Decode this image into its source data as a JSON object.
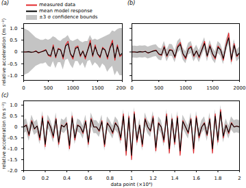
{
  "chart_data": [
    {
      "type": "line",
      "title": "(a)",
      "ylabel": "relative acceleration (m s⁻²)",
      "legend": "top-left",
      "xlim": [
        0,
        2000
      ],
      "xticks": [
        0,
        500,
        1000,
        1500,
        2000
      ],
      "ylim": [
        -1.2,
        1.2
      ],
      "yticks": [
        {
          "value": -1,
          "label": "–1.0"
        },
        {
          "value": -0.5,
          "label": "–0.5"
        },
        0,
        0.5,
        {
          "value": 1,
          "label": "1.0"
        }
      ],
      "x": [
        0,
        50,
        100,
        150,
        200,
        250,
        300,
        350,
        400,
        450,
        500,
        550,
        600,
        650,
        700,
        750,
        800,
        850,
        900,
        950,
        1000,
        1050,
        1100,
        1150,
        1200,
        1250,
        1300,
        1350,
        1400,
        1450,
        1500,
        1550,
        1600,
        1650,
        1700,
        1750,
        1800,
        1850,
        1900,
        1950,
        2000
      ],
      "series": [
        {
          "name": "±3 σ confidence bounds",
          "type": "area",
          "color": "#c4c4c4",
          "upper": [
            1.0,
            0.95,
            0.9,
            0.8,
            0.7,
            0.6,
            0.55,
            0.5,
            0.5,
            0.55,
            0.5,
            0.55,
            0.65,
            0.6,
            0.5,
            0.45,
            0.55,
            0.6,
            0.7,
            0.5,
            0.45,
            0.5,
            0.55,
            0.45,
            0.4,
            0.45,
            0.45,
            0.7,
            0.5,
            0.55,
            0.5,
            0.55,
            0.6,
            0.65,
            0.7,
            0.75,
            0.9,
            0.85,
            0.95,
            1.0,
            1.0
          ],
          "lower": [
            -1.0,
            -0.95,
            -0.9,
            -0.8,
            -0.7,
            -0.6,
            -0.55,
            -0.5,
            -0.5,
            -0.45,
            -0.6,
            -0.65,
            -0.4,
            -0.7,
            -0.45,
            -0.45,
            -0.75,
            -0.35,
            -0.3,
            -0.55,
            -0.7,
            -0.4,
            -0.4,
            -0.6,
            -0.45,
            -0.7,
            -0.4,
            -0.35,
            -0.6,
            -0.45,
            -0.55,
            -0.7,
            -0.5,
            -0.6,
            -0.85,
            -0.7,
            -0.6,
            -1.0,
            -0.8,
            -1.0,
            -1.0
          ]
        },
        {
          "name": "measured data",
          "color": "#e3262b",
          "values": [
            0,
            0,
            0.02,
            -0.02,
            0,
            0.05,
            -0.05,
            0,
            0.05,
            0.1,
            -0.15,
            -0.2,
            0.3,
            -0.25,
            0.15,
            0.1,
            -0.3,
            0.3,
            0.45,
            -0.1,
            -0.3,
            0.2,
            0.25,
            -0.2,
            0.05,
            -0.3,
            0.1,
            0.5,
            -0.2,
            0.3,
            -0.1,
            -0.25,
            0.2,
            0.1,
            -0.3,
            0.2,
            0.5,
            -0.35,
            0.3,
            -0.2,
            -0.1
          ]
        },
        {
          "name": "mean model response",
          "color": "#000000",
          "values": [
            0,
            0,
            0.01,
            -0.01,
            0,
            0.03,
            -0.03,
            0,
            0.03,
            0.08,
            -0.12,
            -0.15,
            0.22,
            -0.2,
            0.12,
            0.08,
            -0.22,
            0.25,
            0.35,
            -0.08,
            -0.22,
            0.15,
            0.2,
            -0.15,
            0.03,
            -0.22,
            0.08,
            0.38,
            -0.15,
            0.22,
            -0.08,
            -0.2,
            0.15,
            0.08,
            -0.22,
            0.15,
            0.38,
            -0.25,
            0.22,
            -0.15,
            -0.05
          ]
        }
      ]
    },
    {
      "type": "line",
      "title": "(b)",
      "tick_labels": "x",
      "xlim": [
        0,
        2000
      ],
      "xticks": [
        0,
        500,
        1000,
        1500,
        2000
      ],
      "ylim": [
        -1.2,
        1.2
      ],
      "yticks": [
        {
          "value": -1,
          "label": "–1.0"
        },
        {
          "value": -0.5,
          "label": "–0.5"
        },
        0,
        0.5,
        {
          "value": 1,
          "label": "1.0"
        }
      ],
      "x": [
        0,
        50,
        100,
        150,
        200,
        250,
        300,
        350,
        400,
        450,
        500,
        550,
        600,
        650,
        700,
        750,
        800,
        850,
        900,
        950,
        1000,
        1050,
        1100,
        1150,
        1200,
        1250,
        1300,
        1350,
        1400,
        1450,
        1500,
        1550,
        1600,
        1650,
        1700,
        1750,
        1800,
        1850,
        1900,
        1950,
        2000
      ],
      "series": [
        {
          "name": "±3 σ confidence bounds",
          "type": "area",
          "color": "#c4c4c4",
          "upper": [
            0.25,
            0.25,
            0.24,
            0.26,
            0.25,
            0.27,
            0.21,
            0.25,
            0.29,
            0.31,
            0.17,
            0.13,
            0.45,
            0.09,
            0.33,
            0.31,
            0.05,
            0.45,
            0.57,
            0.17,
            0.01,
            0.37,
            0.45,
            0.09,
            0.29,
            0.05,
            0.33,
            0.61,
            0.09,
            0.49,
            0.17,
            0.01,
            0.45,
            0.33,
            -0.03,
            0.49,
            0.85,
            -0.07,
            0.53,
            0.09,
            0.21
          ],
          "lower": [
            -0.25,
            -0.25,
            -0.26,
            -0.24,
            -0.25,
            -0.23,
            -0.29,
            -0.25,
            -0.21,
            -0.19,
            -0.33,
            -0.37,
            -0.05,
            -0.41,
            -0.17,
            -0.19,
            -0.45,
            -0.05,
            0.07,
            -0.33,
            -0.49,
            -0.13,
            -0.05,
            -0.41,
            -0.21,
            -0.45,
            -0.17,
            0.11,
            -0.41,
            -0.01,
            -0.33,
            -0.49,
            -0.05,
            -0.17,
            -0.53,
            -0.01,
            0.35,
            -0.57,
            0.03,
            -0.41,
            -0.29
          ]
        },
        {
          "name": "measured data",
          "color": "#e3262b",
          "values": [
            0,
            0,
            -0.02,
            0.02,
            0,
            0.03,
            -0.05,
            0,
            0.05,
            0.08,
            -0.1,
            -0.15,
            0.25,
            -0.2,
            0.1,
            0.08,
            -0.25,
            0.25,
            0.4,
            -0.1,
            -0.3,
            0.15,
            0.25,
            -0.2,
            0.05,
            -0.25,
            0.1,
            0.45,
            -0.2,
            0.3,
            -0.1,
            -0.3,
            0.25,
            0.1,
            -0.35,
            0.3,
            0.8,
            -0.4,
            0.35,
            -0.2,
            -0.05
          ]
        },
        {
          "name": "mean model response",
          "color": "#000000",
          "values": [
            0,
            0,
            -0.01,
            0.01,
            0,
            0.02,
            -0.04,
            0,
            0.04,
            0.06,
            -0.08,
            -0.12,
            0.2,
            -0.16,
            0.08,
            0.06,
            -0.2,
            0.2,
            0.32,
            -0.08,
            -0.24,
            0.12,
            0.2,
            -0.16,
            0.04,
            -0.2,
            0.08,
            0.36,
            -0.16,
            0.24,
            -0.08,
            -0.24,
            0.2,
            0.08,
            -0.28,
            0.24,
            0.6,
            -0.32,
            0.28,
            -0.16,
            -0.04
          ]
        }
      ]
    },
    {
      "type": "line",
      "title": "(c)",
      "ylabel": "relative acceleration (m s⁻²)",
      "xlabel": "data point (×10⁴)",
      "xlim": [
        0,
        2
      ],
      "xticks": [
        0,
        0.2,
        0.4,
        0.6,
        0.8,
        1,
        1.2,
        1.4,
        1.6,
        1.8,
        2
      ],
      "ylim": [
        -2,
        1.2
      ],
      "yticks": [
        {
          "value": -2,
          "label": "–2.0"
        },
        {
          "value": -1.5,
          "label": "–1.5"
        },
        {
          "value": -1,
          "label": "–1.0"
        },
        {
          "value": -0.5,
          "label": "–0.5"
        },
        0,
        0.5,
        {
          "value": 1,
          "label": "1.0"
        }
      ],
      "x": [
        0,
        0.025,
        0.05,
        0.075,
        0.1,
        0.125,
        0.15,
        0.175,
        0.2,
        0.225,
        0.25,
        0.275,
        0.3,
        0.325,
        0.35,
        0.375,
        0.4,
        0.425,
        0.45,
        0.475,
        0.5,
        0.525,
        0.55,
        0.575,
        0.6,
        0.625,
        0.65,
        0.675,
        0.7,
        0.725,
        0.75,
        0.775,
        0.8,
        0.825,
        0.85,
        0.875,
        0.9,
        0.925,
        0.95,
        0.975,
        1,
        1.025,
        1.05,
        1.075,
        1.1,
        1.125,
        1.15,
        1.175,
        1.2,
        1.225,
        1.25,
        1.275,
        1.3,
        1.325,
        1.35,
        1.375,
        1.4,
        1.425,
        1.45,
        1.475,
        1.5,
        1.525,
        1.55,
        1.575,
        1.6,
        1.625,
        1.65,
        1.675,
        1.7,
        1.725,
        1.75,
        1.775,
        1.8,
        1.825,
        1.85,
        1.875,
        1.9,
        1.925,
        1.95,
        1.975,
        2
      ],
      "series": [
        {
          "name": "±3 σ confidence bounds",
          "type": "area",
          "color": "#c4c4c4",
          "upper": [
            0.3,
            0.38,
            -0.05,
            0.55,
            0.22,
            0.34,
            -0.2,
            0.72,
            -0.5,
            0.55,
            0.3,
            -0.12,
            0.65,
            -0.4,
            0.38,
            0.3,
            0.47,
            -0.55,
            0.72,
            -0.2,
            0.38,
            0.3,
            0.05,
            0.55,
            -0.4,
            0.65,
            0.3,
            0.3,
            0.13,
            0.55,
            -0.5,
            0.47,
            0.3,
            0.05,
            0.47,
            0.3,
            -0.2,
            0.8,
            -0.8,
            0.72,
            -1.0,
            0.9,
            -0.3,
            0.38,
            -0.5,
            0.65,
            0.3,
            0.13,
            0.72,
            -0.65,
            0.47,
            0.3,
            -0.3,
            0.8,
            -0.7,
            0.65,
            -0.4,
            0.72,
            -0.8,
            0.55,
            0.3,
            0.05,
            0.65,
            -0.7,
            0.72,
            -0.12,
            0.3,
            0.47,
            -0.05,
            0.65,
            -0.7,
            0.8,
            -0.3,
            1.0,
            -0.12,
            0.38,
            0.05,
            0.47,
            0.3,
            0.34,
            0.3
          ],
          "lower": [
            -0.3,
            -0.22,
            -0.65,
            -0.05,
            -0.38,
            -0.26,
            -0.8,
            0.12,
            -1.1,
            -0.05,
            -0.3,
            -0.72,
            0.05,
            -1.0,
            -0.22,
            -0.3,
            -0.13,
            -1.15,
            0.12,
            -0.8,
            -0.22,
            -0.3,
            -0.55,
            -0.05,
            -1.0,
            0.05,
            -0.3,
            -0.3,
            -0.47,
            -0.05,
            -1.1,
            -0.13,
            -0.3,
            -0.55,
            -0.13,
            -0.3,
            -0.8,
            0.2,
            -1.4,
            0.12,
            -1.6,
            0.3,
            -0.9,
            -0.22,
            -1.1,
            0.05,
            -0.3,
            -0.47,
            0.12,
            -1.25,
            -0.13,
            -0.3,
            -0.9,
            0.2,
            -1.3,
            0.05,
            -1.0,
            0.12,
            -1.4,
            -0.05,
            -0.3,
            -0.55,
            0.05,
            -1.3,
            0.12,
            -0.72,
            -0.3,
            -0.13,
            -0.65,
            0.05,
            -1.3,
            0.2,
            -0.9,
            0.4,
            -0.72,
            -0.22,
            -0.55,
            -0.13,
            -0.3,
            -0.26,
            -0.3
          ]
        },
        {
          "name": "measured data",
          "color": "#e3262b",
          "values": [
            0,
            0.1,
            -0.4,
            0.3,
            -0.1,
            0.05,
            -0.6,
            0.5,
            -0.9,
            0.3,
            0,
            -0.5,
            0.4,
            -0.8,
            0.1,
            0,
            0.2,
            -1.0,
            0.5,
            -0.6,
            0.1,
            0,
            -0.3,
            0.3,
            -0.8,
            0.4,
            0,
            0,
            -0.2,
            0.3,
            -0.9,
            0.2,
            0,
            -0.3,
            0.2,
            0,
            -0.6,
            0.6,
            -1.3,
            0.5,
            -1.5,
            0.7,
            -0.7,
            0.1,
            -0.9,
            0.4,
            0,
            -0.2,
            0.5,
            -1.1,
            0.2,
            0,
            -0.7,
            0.6,
            -1.2,
            0.4,
            -0.8,
            0.5,
            -1.3,
            0.3,
            0,
            -0.3,
            0.4,
            -1.2,
            0.5,
            -0.5,
            0,
            0.2,
            -0.4,
            0.4,
            -1.2,
            0.6,
            -0.7,
            0.8,
            -0.5,
            0.1,
            -0.3,
            0.2,
            0,
            0.05,
            0
          ]
        },
        {
          "name": "mean model response",
          "color": "#000000",
          "values": [
            0,
            0.08,
            -0.35,
            0.25,
            -0.08,
            0.04,
            -0.5,
            0.42,
            -0.8,
            0.25,
            0,
            -0.42,
            0.35,
            -0.7,
            0.08,
            0,
            0.17,
            -0.85,
            0.42,
            -0.5,
            0.08,
            0,
            -0.25,
            0.25,
            -0.7,
            0.35,
            0,
            0,
            -0.17,
            0.25,
            -0.8,
            0.17,
            0,
            -0.25,
            0.17,
            0,
            -0.5,
            0.5,
            -1.1,
            0.42,
            -1.3,
            0.6,
            -0.6,
            0.08,
            -0.8,
            0.35,
            0,
            -0.17,
            0.42,
            -0.95,
            0.17,
            0,
            -0.6,
            0.5,
            -1.0,
            0.35,
            -0.7,
            0.42,
            -1.1,
            0.25,
            0,
            -0.25,
            0.35,
            -1.0,
            0.42,
            -0.42,
            0,
            0.17,
            -0.35,
            0.35,
            -1.0,
            0.5,
            -0.6,
            0.7,
            -0.42,
            0.08,
            -0.25,
            0.17,
            0,
            0.04,
            0
          ]
        }
      ]
    }
  ]
}
